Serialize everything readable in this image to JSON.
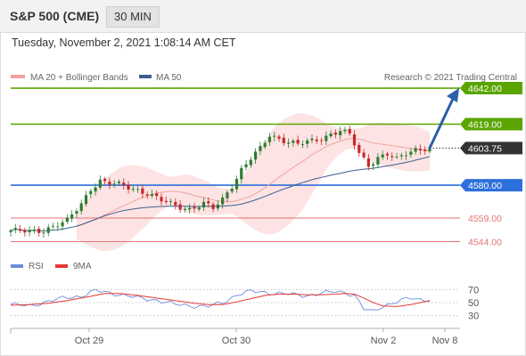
{
  "header": {
    "title": "S&P 500 (CME)",
    "timeframe": "30 MIN"
  },
  "date_line": "Tuesday, November 2, 2021 1:08:14 AM CET",
  "legend": {
    "bb": "MA 20 + Bollinger Bands",
    "ma50": "MA 50",
    "copyright": "Research © 2021 Trading Central",
    "rsi": "RSI",
    "rsi_ma": "9MA"
  },
  "colors": {
    "bb_band": "#fde3e3",
    "bb_mid": "#f4a0a0",
    "ma50": "#3b5f8f",
    "up_candle": "#2e7d32",
    "down_candle": "#c62828",
    "resistance": "#5aa500",
    "pivot": "#2d6fdb",
    "support": "#e57373",
    "last": "#333333",
    "arrow": "#2d5fa8",
    "rsi": "#6a8cd8",
    "rsi_ma": "#e53935"
  },
  "chart_data": [
    {
      "type": "candlestick",
      "price_ylim": [
        4538,
        4646
      ],
      "x_labels": [
        "Oct 29",
        "Oct 30",
        "Nov 2",
        "Nov 8"
      ],
      "levels": [
        {
          "label": "4642.00",
          "value": 4642.0,
          "kind": "resistance"
        },
        {
          "label": "4619.00",
          "value": 4619.0,
          "kind": "resistance"
        },
        {
          "label": "4603.75",
          "value": 4603.75,
          "kind": "last"
        },
        {
          "label": "4580.00",
          "value": 4580.0,
          "kind": "pivot"
        },
        {
          "label": "4559.00",
          "value": 4559.0,
          "kind": "support"
        },
        {
          "label": "4544.00",
          "value": 4544.0,
          "kind": "support"
        }
      ],
      "anchors": [
        [
          0,
          4551
        ],
        [
          4,
          4550
        ],
        [
          7,
          4551.5
        ],
        [
          9,
          4554
        ],
        [
          12,
          4557
        ],
        [
          15,
          4568
        ],
        [
          17,
          4578
        ],
        [
          19,
          4583
        ],
        [
          21,
          4581
        ],
        [
          23,
          4580
        ],
        [
          26,
          4578
        ],
        [
          29,
          4575
        ],
        [
          32,
          4570
        ],
        [
          35,
          4567
        ],
        [
          38,
          4565
        ],
        [
          41,
          4568
        ],
        [
          43,
          4565
        ],
        [
          45,
          4571
        ],
        [
          47,
          4580
        ],
        [
          49,
          4590
        ],
        [
          51,
          4597
        ],
        [
          53,
          4603
        ],
        [
          55,
          4612
        ],
        [
          58,
          4609
        ],
        [
          61,
          4606
        ],
        [
          64,
          4608
        ],
        [
          66,
          4610
        ],
        [
          68,
          4613
        ],
        [
          70,
          4615
        ],
        [
          72,
          4612
        ],
        [
          74,
          4600
        ],
        [
          76,
          4593
        ],
        [
          78,
          4598
        ],
        [
          80,
          4600
        ],
        [
          82,
          4596
        ],
        [
          84,
          4600
        ],
        [
          86,
          4603
        ],
        [
          88,
          4604
        ],
        [
          89,
          4603.75
        ]
      ],
      "forecast_target": 4642.0
    },
    {
      "type": "line",
      "name": "RSI",
      "ylim": [
        20,
        80
      ],
      "yticks": [
        70,
        50,
        30
      ],
      "x": [
        0,
        4,
        8,
        12,
        15,
        18,
        20,
        23,
        27,
        31,
        35,
        39,
        42,
        45,
        48,
        51,
        54,
        57,
        60,
        63,
        66,
        69,
        71,
        73,
        75,
        77,
        79,
        82,
        85,
        87,
        89
      ],
      "rsi": [
        47,
        45,
        52,
        58,
        60,
        68,
        66,
        63,
        57,
        54,
        47,
        45,
        44,
        50,
        62,
        67,
        66,
        64,
        62,
        61,
        64,
        67,
        66,
        61,
        40,
        36,
        45,
        51,
        57,
        55,
        54
      ],
      "ma": [
        46,
        47,
        49,
        53,
        57,
        61,
        64,
        64,
        61,
        57,
        53,
        49,
        47,
        47,
        51,
        56,
        61,
        63,
        63,
        62,
        62,
        63,
        64,
        63,
        57,
        50,
        45,
        44,
        47,
        50,
        53
      ]
    }
  ]
}
